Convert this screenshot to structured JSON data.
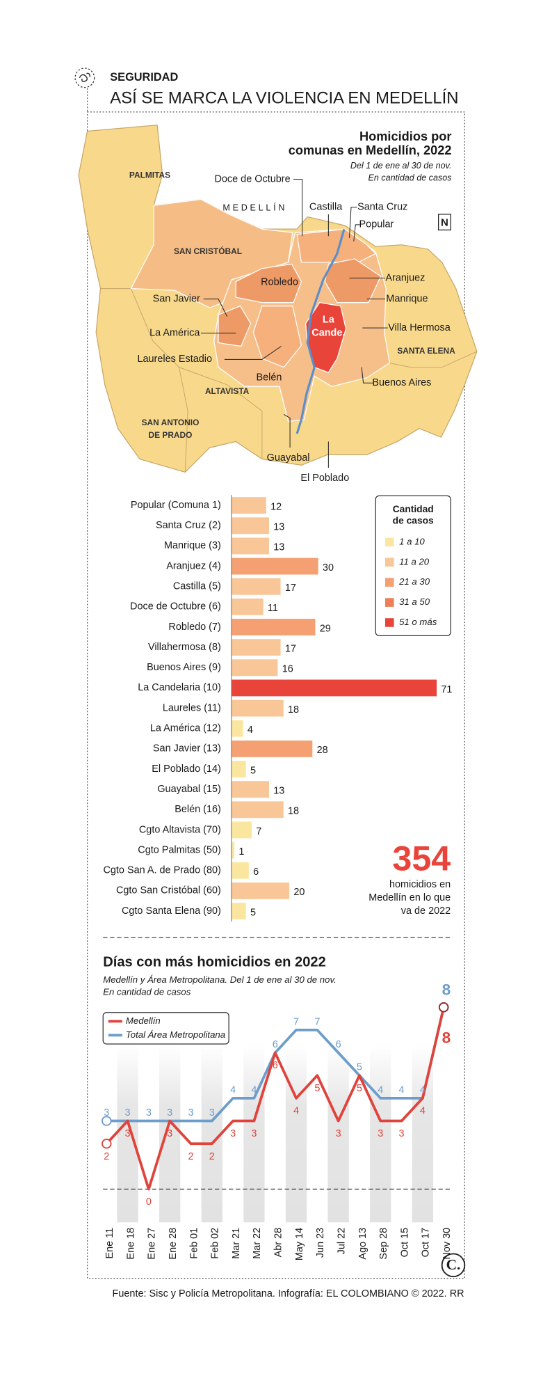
{
  "header": {
    "section": "SEGURIDAD",
    "title": "ASÍ SE MARCA LA VIOLENCIA EN MEDELLÍN"
  },
  "map": {
    "title": [
      "Homicidios por",
      "comunas en Medellín, 2022"
    ],
    "notes": [
      "Del 1 de ene al 30 de nov.",
      "En cantidad de casos"
    ],
    "north": "N",
    "labels": [
      "PALMITAS",
      "Doce de Octubre",
      "MEDELLÍN",
      "Castilla",
      "Santa Cruz",
      "Popular",
      "SAN CRISTÓBAL",
      "Robledo",
      "Aranjuez",
      "Manrique",
      "San Javier",
      "La América",
      [
        "La",
        "Cande."
      ],
      "Villa Hermosa",
      "SANTA ELENA",
      "Laureles Estadio",
      "Belén",
      "ALTAVISTA",
      "Buenos Aires",
      [
        "SAN ANTONIO",
        "DE PRADO"
      ],
      "Guayabal",
      "El Poblado"
    ]
  },
  "chart_data": [
    {
      "type": "bar",
      "orientation": "horizontal",
      "categories": [
        "Popular (Comuna 1)",
        "Santa Cruz (2)",
        "Manrique (3)",
        "Aranjuez (4)",
        "Castilla (5)",
        "Doce de Octubre (6)",
        "Robledo (7)",
        "Villahermosa (8)",
        "Buenos Aires (9)",
        "La Candelaria (10)",
        "Laureles (11)",
        "La América (12)",
        "San Javier (13)",
        "El Poblado (14)",
        "Guayabal (15)",
        "Belén (16)",
        "Cgto Altavista (70)",
        "Cgto Palmitas (50)",
        "Cgto San A. de Prado (80)",
        "Cgto San Cristóbal (60)",
        "Cgto Santa Elena (90)"
      ],
      "values": [
        12,
        13,
        13,
        30,
        17,
        11,
        29,
        17,
        16,
        71,
        18,
        4,
        28,
        5,
        13,
        18,
        7,
        1,
        6,
        20,
        5
      ],
      "colors": [
        "#f8c697",
        "#f8c697",
        "#f8c697",
        "#f4a072",
        "#f8c697",
        "#f8c697",
        "#f4a072",
        "#f8c697",
        "#f8c697",
        "#e8443a",
        "#f8c697",
        "#fbe6a0",
        "#f4a072",
        "#fbe6a0",
        "#f8c697",
        "#f8c697",
        "#fbe6a0",
        "#fbe6a0",
        "#fbe6a0",
        "#f8c697",
        "#fbe6a0"
      ],
      "xlim": [
        0,
        71
      ],
      "legend_title": [
        "Cantidad",
        "de casos"
      ],
      "legend": [
        {
          "label": "1 a 10",
          "color": "#fbe6a0"
        },
        {
          "label": "11 a 20",
          "color": "#f8c697"
        },
        {
          "label": "21 a 30",
          "color": "#f4a072"
        },
        {
          "label": "31 a 50",
          "color": "#ec7f55"
        },
        {
          "label": "51 o más",
          "color": "#e8443a"
        }
      ],
      "annotation": {
        "value": 354,
        "lines": [
          "homicidios en",
          "Medellín en lo que",
          "va de 2022"
        ],
        "color": "#e8443a"
      }
    },
    {
      "type": "line",
      "title": "Días con más homicidios en 2022",
      "subtitle": [
        "Medellín y Área Metropolitana. Del 1 de ene al 30 de nov.",
        "En cantidad de casos"
      ],
      "categories": [
        "Ene 11",
        "Ene 18",
        "Ene 27",
        "Ene 28",
        "Feb 01",
        "Feb 02",
        "Mar 21",
        "Mar 22",
        "Abr 28",
        "May 14",
        "Jun 23",
        "Jul 22",
        "Ago 13",
        "Sep 28",
        "Oct 15",
        "Oct 17",
        "Nov 30"
      ],
      "series": [
        {
          "name": "Medellín",
          "color": "#e0433b",
          "values": [
            2,
            3,
            0,
            3,
            2,
            2,
            3,
            3,
            6,
            4,
            5,
            3,
            5,
            3,
            3,
            4,
            8
          ]
        },
        {
          "name": "Total Área Metropolitana",
          "color": "#6d9dcb",
          "values": [
            3,
            3,
            3,
            3,
            3,
            3,
            4,
            4,
            6,
            7,
            7,
            6,
            5,
            4,
            4,
            4,
            8
          ]
        }
      ],
      "ylim": [
        0,
        8
      ],
      "legend": "top-left"
    }
  ],
  "footer": {
    "source": "Fuente: Sisc y Policía Metropolitana. Infografía: EL COLOMBIANO © 2022. RR",
    "logo": "C."
  }
}
